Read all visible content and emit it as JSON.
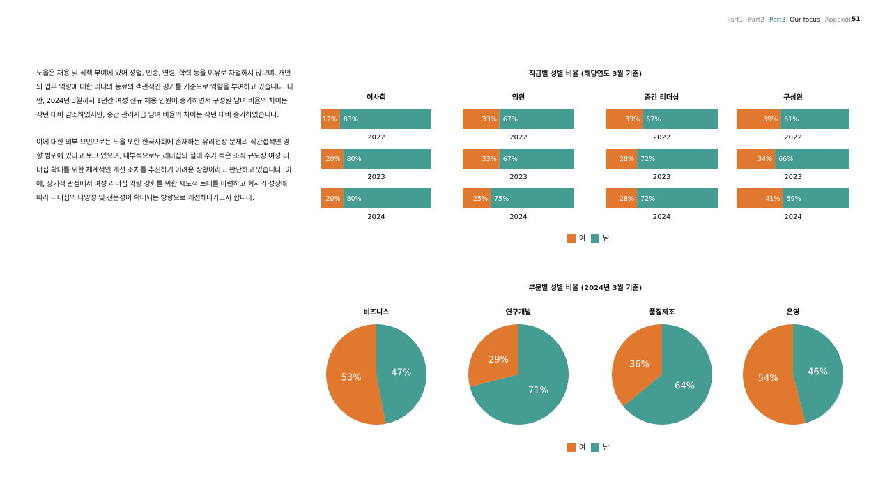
{
  "nav": {
    "items": [
      "Part1",
      "Part2"
    ],
    "active_prefix": "Part3.",
    "active_label": "Our focus",
    "appendix": "Appendix",
    "page": "51"
  },
  "body": {
    "paragraphs": [
      "노을은 채용 및 직책 부여에 있어 성별, 인종, 연령, 학력 등을 이유로 차별하지 않으며, 개인의 업무 역량에 대한 리더와 동료의 객관적인 평가를 기준으로 역할을 부여하고 있습니다. 다만, 2024년 3월까지 1년간 여성 신규 채용 인원이 증가하면서 구성원 남녀 비율의 차이는 작년 대비 감소하였지만, 중간 관리자급 남녀 비율의 차이는 작년 대비 증가하였습니다.",
      "이에 대한 외부 요인으로는 노을 또한 한국사회에 존재하는 유리천장 문제의 직간접적인 영향 범위에 있다고 보고 있으며, 내부적으로도 리더십의 절대 수가 적은 조직 규모상 여성 리더십 확대를 위한 체계적인 개선 조치를 추진하기 어려운 상황이라고 판단하고 있습니다. 이에, 장기적 관점에서 여성 리더십 역량 강화를 위한 제도적 토대를 마련하고 회사의 성장에 따라 리더십의 다양성 및 전문성이 확대되는 방향으로 개선해나가고자 합니다."
    ]
  },
  "colors": {
    "female": "#E0782F",
    "male": "#459C92"
  },
  "chart_data": [
    {
      "type": "bar",
      "stacked": true,
      "orientation": "horizontal",
      "title": "직급별 성별 비율 (해당연도 3월 기준)",
      "legend": [
        "여",
        "남"
      ],
      "legend_placement": "bottom",
      "groups": [
        {
          "name": "이사회",
          "years": [
            "2022",
            "2023",
            "2024"
          ],
          "female": [
            17,
            20,
            20
          ],
          "male": [
            83,
            80,
            80
          ]
        },
        {
          "name": "임원",
          "years": [
            "2022",
            "2023",
            "2024"
          ],
          "female": [
            33,
            33,
            25
          ],
          "male": [
            67,
            67,
            75
          ]
        },
        {
          "name": "중간 리더십",
          "years": [
            "2022",
            "2023",
            "2024"
          ],
          "female": [
            33,
            28,
            28
          ],
          "male": [
            67,
            72,
            72
          ]
        },
        {
          "name": "구성원",
          "years": [
            "2022",
            "2023",
            "2024"
          ],
          "female": [
            39,
            34,
            41
          ],
          "male": [
            61,
            66,
            59
          ]
        }
      ]
    },
    {
      "type": "pie",
      "title": "부문별 성별 비율 (2024년 3월 기준)",
      "legend": [
        "여",
        "남"
      ],
      "legend_placement": "bottom",
      "pies": [
        {
          "name": "비즈니스",
          "female": 53,
          "male": 47
        },
        {
          "name": "연구개발",
          "female": 29,
          "male": 71
        },
        {
          "name": "품질제조",
          "female": 36,
          "male": 64
        },
        {
          "name": "운영",
          "female": 54,
          "male": 46
        }
      ]
    }
  ]
}
